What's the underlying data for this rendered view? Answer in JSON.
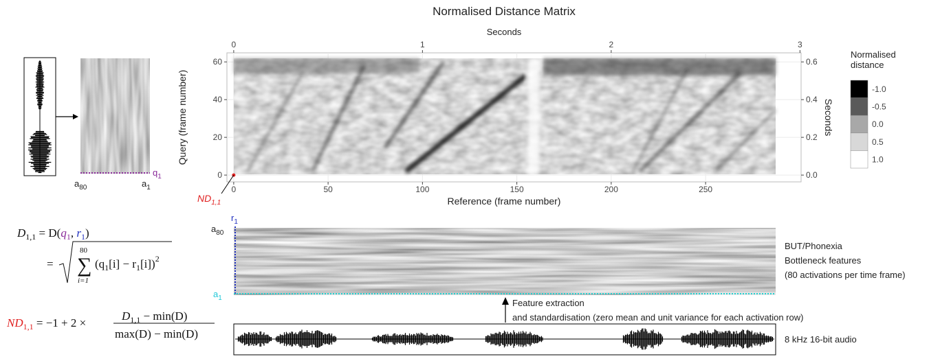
{
  "matrix": {
    "title": "Normalised Distance Matrix",
    "x_top_label": "Seconds",
    "x_label": "Reference (frame number)",
    "y_label": "Query (frame number)",
    "y2_label": "Seconds",
    "xlim": [
      -3.6,
      300.6
    ],
    "xticks": [
      0,
      50,
      100,
      150,
      200,
      250
    ],
    "x2lim": [
      -0.036,
      3.006
    ],
    "x2ticks": [
      0,
      1,
      2,
      3
    ],
    "ylim": [
      -3.6,
      64.8
    ],
    "yticks": [
      0,
      20,
      40,
      60
    ],
    "y2lim": [
      -0.036,
      0.648
    ],
    "y2ticks": [
      {
        "value": 0,
        "label": "0.0"
      },
      {
        "value": 0.2,
        "label": "0.2"
      },
      {
        "value": 0.4,
        "label": "0.4"
      },
      {
        "value": 0.6,
        "label": "0.6"
      }
    ],
    "grid": true,
    "corner_label": {
      "base": "ND",
      "sub": "1,1"
    }
  },
  "legend": {
    "title_lines": [
      "Normalised",
      "distance"
    ],
    "entries": [
      {
        "value": -1,
        "label": "-1.0",
        "color": "#000000"
      },
      {
        "value": -0.5,
        "label": "-0.5",
        "color": "#5a5a5a"
      },
      {
        "value": 0,
        "label": "0.0",
        "color": "#a8a8a8"
      },
      {
        "value": 0.5,
        "label": "0.5",
        "color": "#d8d8d8"
      },
      {
        "value": 1,
        "label": "1.0",
        "color": "#ffffff"
      }
    ]
  },
  "left_features": {
    "q_label": {
      "base": "q",
      "sub": "1"
    },
    "first_label": {
      "base": "a",
      "sub": "80"
    },
    "last_label": {
      "base": "a",
      "sub": "1"
    }
  },
  "features": {
    "r_label": {
      "base": "r",
      "sub": "1"
    },
    "top_label": {
      "base": "a",
      "sub": "80"
    },
    "bottom_label": {
      "base": "a",
      "sub": "1"
    },
    "description": [
      "BUT/Phonexia",
      "Bottleneck features",
      "(80 activations per time frame)"
    ]
  },
  "extraction": [
    "Feature extraction",
    "and standardisation (zero mean and unit variance for each activation row)"
  ],
  "audio": "8 kHz 16-bit audio",
  "equations": {
    "eq1": [
      "D",
      "1,1",
      " = D(",
      "q",
      "1",
      ", ",
      "r",
      "1",
      ")"
    ],
    "eq2": [
      "=",
      "80",
      "∑",
      "i=1",
      "(q",
      "1",
      "[i] − r",
      "1",
      "[i])",
      "2"
    ],
    "eq3": [
      "ND",
      "1,1",
      " = −1 + 2 × ",
      "D",
      "1,1",
      " − min(D)",
      "max(D) − min(D)"
    ]
  }
}
